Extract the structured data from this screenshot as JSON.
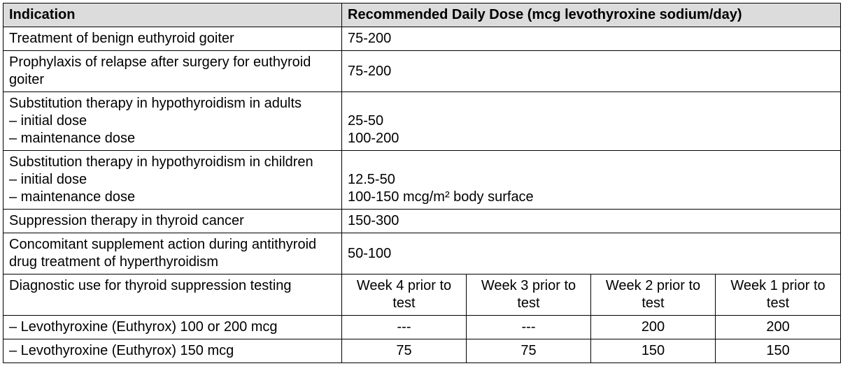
{
  "colors": {
    "header_bg": "#dcdcdc",
    "border": "#000000",
    "text": "#000000",
    "background": "#ffffff"
  },
  "columns": {
    "indication_pct": 40,
    "dose_pct": 60,
    "week_cols": 4
  },
  "header": {
    "indication": "Indication",
    "dose": "Recommended Daily Dose (mcg levothyroxine sodium/day)"
  },
  "rows": [
    {
      "indication": "Treatment of benign euthyroid goiter",
      "dose": "75-200"
    },
    {
      "indication": "Prophylaxis of relapse after surgery for euthyroid goiter",
      "dose": "75-200"
    },
    {
      "indication": "Substitution therapy in hypothyroidism in adults\n– initial dose\n– maintenance dose",
      "dose": "\n25-50\n100-200"
    },
    {
      "indication": "Substitution therapy in hypothyroidism in children\n– initial dose\n– maintenance dose",
      "dose": "\n12.5-50\n100-150 mcg/m² body surface"
    },
    {
      "indication": "Suppression therapy in thyroid cancer",
      "dose": "150-300"
    },
    {
      "indication": "Concomitant supplement action during antithyroid drug treatment of hyperthyroidism",
      "dose": "50-100"
    }
  ],
  "diagnostic": {
    "label": "Diagnostic use for thyroid suppression testing",
    "weeks": [
      "Week 4 prior to test",
      "Week 3 prior to test",
      "Week 2 prior to test",
      "Week 1 prior to test"
    ],
    "drugs": [
      {
        "label": "– Levothyroxine (Euthyrox) 100 or 200 mcg",
        "values": [
          "---",
          "---",
          "200",
          "200"
        ]
      },
      {
        "label": "– Levothyroxine (Euthyrox) 150 mcg",
        "values": [
          "75",
          "75",
          "150",
          "150"
        ]
      }
    ]
  }
}
